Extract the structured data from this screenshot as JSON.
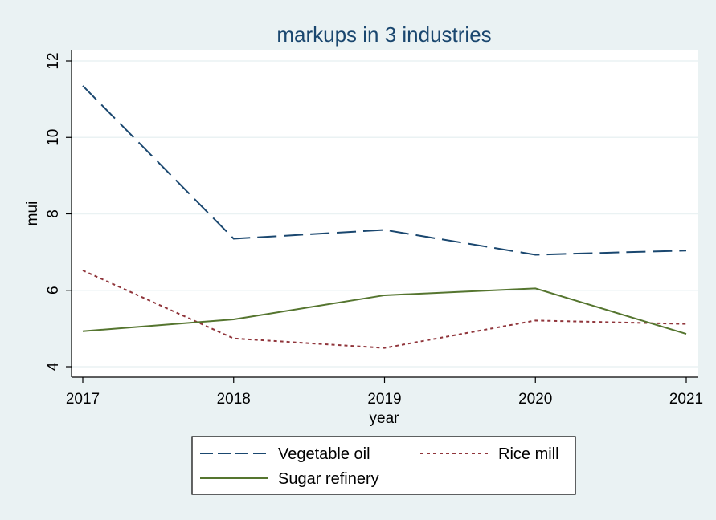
{
  "chart_data": {
    "type": "line",
    "title": "markups in 3 industries",
    "xlabel": "year",
    "ylabel": "mui",
    "x": [
      2017,
      2018,
      2019,
      2020,
      2021
    ],
    "xlim": [
      2017,
      2021
    ],
    "ylim": [
      4,
      12
    ],
    "yticks": [
      4,
      6,
      8,
      10,
      12
    ],
    "grid": true,
    "legend_position": "bottom",
    "series": [
      {
        "name": "Vegetable oil",
        "values": [
          11.35,
          7.35,
          7.58,
          6.93,
          7.04
        ],
        "color": "#1a476f",
        "dash": "long-dash"
      },
      {
        "name": "Rice mill",
        "values": [
          6.52,
          4.74,
          4.49,
          5.21,
          5.12
        ],
        "color": "#90353b",
        "dash": "short-dash"
      },
      {
        "name": "Sugar refinery",
        "values": [
          4.93,
          5.24,
          5.87,
          6.05,
          4.86
        ],
        "color": "#55752f",
        "dash": "solid"
      }
    ]
  }
}
